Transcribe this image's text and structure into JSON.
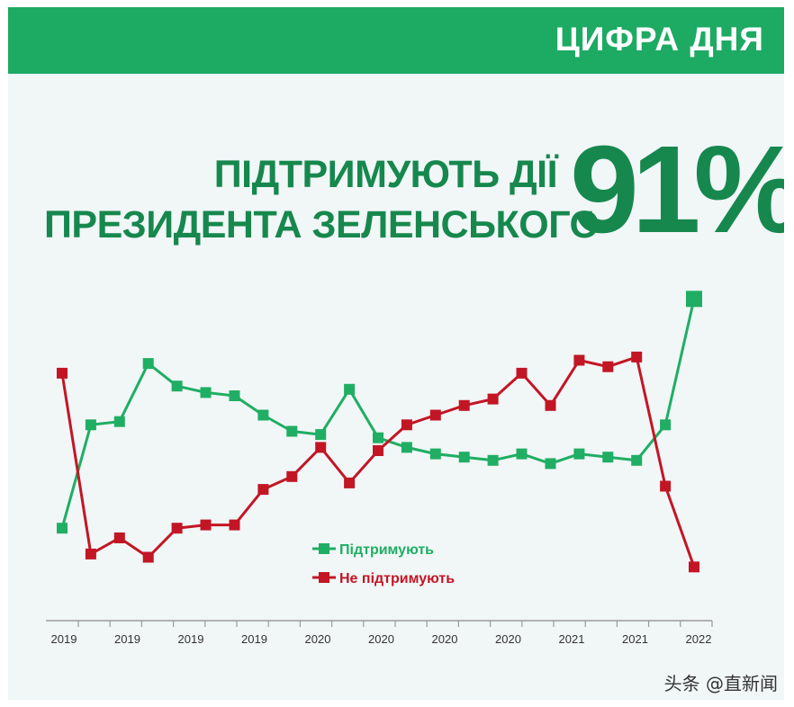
{
  "banner": {
    "label": "ЦИФРА ДНЯ"
  },
  "headline": {
    "line1": "ПІДТРИМУЮТЬ ДІЇ",
    "line2": "ПРЕЗИДЕНТА ЗЕЛЕНСЬКОГО",
    "value": "91%"
  },
  "watermark": {
    "text": "头条 @直新闻"
  },
  "colors": {
    "banner": "#1daa63",
    "headline": "#16884e",
    "support": "#1fae63",
    "oppose": "#c21625",
    "background": "#f1f6f7"
  },
  "chart_data": {
    "type": "line",
    "title": "ПІДТРИМУЮТЬ ДІЇ ПРЕЗИДЕНТА ЗЕЛЕНСЬКОГО",
    "xlabel": "",
    "ylabel": "",
    "x_tick_labels": [
      "2019",
      "2019",
      "2019",
      "2019",
      "2020",
      "2020",
      "2020",
      "2020",
      "2021",
      "2021",
      "2022"
    ],
    "grid": false,
    "legend_position": "bottom-center",
    "y_range": [
      0,
      100
    ],
    "series": [
      {
        "name": "Підтримують",
        "color": "#1fae63",
        "values": [
          20,
          52,
          53,
          71,
          64,
          62,
          61,
          55,
          50,
          49,
          63,
          48,
          45,
          43,
          42,
          41,
          43,
          40,
          43,
          42,
          41,
          52,
          91
        ]
      },
      {
        "name": "Не підтримують",
        "color": "#c21625",
        "values": [
          68,
          12,
          17,
          11,
          20,
          21,
          21,
          32,
          36,
          45,
          34,
          44,
          52,
          55,
          58,
          60,
          68,
          58,
          72,
          70,
          73,
          33,
          8
        ]
      }
    ]
  }
}
